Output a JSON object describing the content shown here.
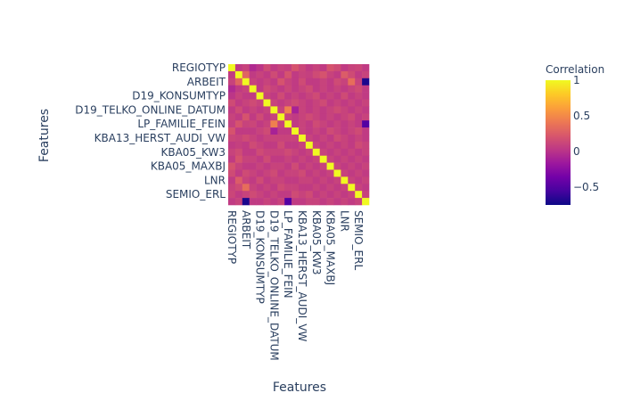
{
  "chart_data": {
    "type": "heatmap",
    "title": "",
    "xlabel": "Features",
    "ylabel": "Features",
    "colorbar": {
      "title": "Correlation",
      "range": [
        -0.75,
        1
      ],
      "ticks": [
        {
          "value": 1,
          "label": "1"
        },
        {
          "value": 0.5,
          "label": "0.5"
        },
        {
          "value": 0,
          "label": "0"
        },
        {
          "value": -0.5,
          "label": "−0.5"
        }
      ],
      "colorscale": [
        "#0d0887",
        "#46039f",
        "#7201a8",
        "#9c179e",
        "#bd3786",
        "#d8576b",
        "#ed7953",
        "#fb9f3a",
        "#fdca26",
        "#f0f921"
      ]
    },
    "n_features": 20,
    "labels": [
      "REGIOTYP",
      "",
      "ARBEIT",
      "",
      "D19_KONSUMTYP",
      "",
      "D19_TELKO_ONLINE_DATUM",
      "",
      "LP_FAMILIE_FEIN",
      "",
      "KBA13_HERST_AUDI_VW",
      "",
      "KBA05_KW3",
      "",
      "KBA05_MAXBJ",
      "",
      "LNR",
      "",
      "SEMIO_ERL",
      ""
    ],
    "z": [
      [
        1,
        0.05,
        0.1,
        -0.05,
        0.02,
        0.15,
        0.05,
        0.1,
        0.08,
        0.2,
        0.12,
        0.05,
        0.1,
        0.05,
        0.2,
        0.15,
        0.05,
        0.1,
        0.12,
        0.05
      ],
      [
        0.05,
        1,
        0.3,
        0.05,
        0.1,
        0.05,
        0.15,
        0.05,
        0.2,
        0.05,
        0.1,
        0.08,
        0.15,
        0.2,
        0.1,
        0.05,
        0.25,
        0.15,
        0.05,
        0.1
      ],
      [
        0.1,
        0.3,
        1,
        0.1,
        0.05,
        0.1,
        0.05,
        0.2,
        0.1,
        0.05,
        0.15,
        0.05,
        0.05,
        0.1,
        0.05,
        0.15,
        0.1,
        0.35,
        0.1,
        -0.7
      ],
      [
        -0.05,
        0.05,
        0.1,
        1,
        0.05,
        0.15,
        0.1,
        0.05,
        0.12,
        0.05,
        0.1,
        0.15,
        0.05,
        0.1,
        0.05,
        0.1,
        0.05,
        0.1,
        0.15,
        0.05
      ],
      [
        0.02,
        0.1,
        0.05,
        0.05,
        1,
        0.1,
        0.05,
        0.15,
        0.05,
        0.1,
        0.05,
        0.1,
        0.15,
        0.05,
        0.1,
        0.05,
        0.15,
        0.05,
        0.1,
        0.05
      ],
      [
        0.15,
        0.05,
        0.1,
        0.15,
        0.1,
        1,
        0.1,
        0.05,
        0.1,
        0.15,
        0.1,
        0.05,
        0.1,
        0.15,
        0.05,
        0.1,
        0.05,
        0.1,
        0.05,
        0.1
      ],
      [
        0.05,
        0.15,
        0.05,
        0.1,
        0.05,
        0.1,
        1,
        0.1,
        0.45,
        -0.1,
        0.1,
        0.05,
        0.1,
        0.05,
        0.1,
        0.15,
        0.1,
        0.05,
        0.1,
        0.05
      ],
      [
        0.1,
        0.05,
        0.2,
        0.05,
        0.15,
        0.05,
        0.1,
        1,
        0.1,
        0.05,
        0.1,
        0.15,
        0.1,
        0.05,
        0.1,
        0.05,
        0.1,
        0.15,
        0.05,
        0.1
      ],
      [
        0.08,
        0.2,
        0.1,
        0.12,
        0.05,
        0.1,
        0.45,
        0.1,
        1,
        0.05,
        0.1,
        0.05,
        0.15,
        0.1,
        0.05,
        0.1,
        0.05,
        0.1,
        0.05,
        -0.5
      ],
      [
        0.2,
        0.05,
        0.05,
        0.05,
        0.1,
        0.15,
        -0.1,
        0.05,
        0.05,
        1,
        0.1,
        0.05,
        0.1,
        0.05,
        0.15,
        0.1,
        0.05,
        0.1,
        0.15,
        0.05
      ],
      [
        0.12,
        0.1,
        0.15,
        0.1,
        0.05,
        0.1,
        0.1,
        0.1,
        0.1,
        0.1,
        1,
        0.1,
        0.05,
        0.1,
        0.05,
        0.15,
        0.1,
        0.05,
        0.1,
        0.05
      ],
      [
        0.05,
        0.08,
        0.05,
        0.15,
        0.1,
        0.05,
        0.05,
        0.15,
        0.05,
        0.05,
        0.1,
        1,
        0.1,
        0.05,
        0.1,
        0.05,
        0.1,
        0.05,
        0.15,
        0.1
      ],
      [
        0.1,
        0.15,
        0.05,
        0.05,
        0.15,
        0.1,
        0.1,
        0.1,
        0.15,
        0.1,
        0.05,
        0.1,
        1,
        0.1,
        0.05,
        0.1,
        0.05,
        0.1,
        0.05,
        0.1
      ],
      [
        0.05,
        0.2,
        0.1,
        0.1,
        0.05,
        0.15,
        0.05,
        0.05,
        0.1,
        0.05,
        0.1,
        0.05,
        0.1,
        1,
        0.1,
        0.05,
        0.1,
        0.05,
        0.1,
        0.05
      ],
      [
        0.2,
        0.1,
        0.05,
        0.05,
        0.1,
        0.05,
        0.1,
        0.1,
        0.05,
        0.15,
        0.05,
        0.1,
        0.05,
        0.1,
        1,
        0.1,
        0.05,
        0.1,
        0.05,
        0.1
      ],
      [
        0.15,
        0.05,
        0.15,
        0.1,
        0.05,
        0.1,
        0.15,
        0.05,
        0.1,
        0.1,
        0.15,
        0.05,
        0.1,
        0.05,
        0.1,
        1,
        0.1,
        0.05,
        0.1,
        0.05
      ],
      [
        0.05,
        0.25,
        0.1,
        0.05,
        0.15,
        0.05,
        0.1,
        0.1,
        0.05,
        0.05,
        0.1,
        0.1,
        0.05,
        0.1,
        0.05,
        0.1,
        1,
        0.1,
        0.05,
        0.1
      ],
      [
        0.1,
        0.15,
        0.35,
        0.1,
        0.05,
        0.1,
        0.05,
        0.15,
        0.1,
        0.1,
        0.05,
        0.05,
        0.1,
        0.05,
        0.1,
        0.05,
        0.1,
        1,
        0.1,
        0.05
      ],
      [
        0.12,
        0.05,
        0.1,
        0.15,
        0.1,
        0.05,
        0.1,
        0.05,
        0.05,
        0.15,
        0.1,
        0.15,
        0.05,
        0.1,
        0.05,
        0.1,
        0.05,
        0.1,
        1,
        0.1
      ],
      [
        0.05,
        0.1,
        -0.7,
        0.05,
        0.05,
        0.1,
        0.05,
        0.1,
        -0.5,
        0.05,
        0.05,
        0.1,
        0.1,
        0.05,
        0.1,
        0.05,
        0.1,
        0.05,
        0.1,
        1
      ]
    ]
  }
}
